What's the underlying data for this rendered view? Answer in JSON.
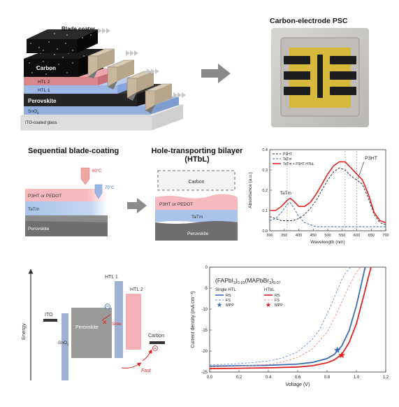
{
  "top": {
    "layers": {
      "blade_coater": "Blade coater",
      "carbon": "Carbon",
      "htl2": "HTL 2",
      "htl1": "HTL 1",
      "perovskite": "Perovskite",
      "sno2": "SnO",
      "sno2_sub": "2",
      "ito": "ITO-coated glass"
    },
    "photo_title": "Carbon-electrode PSC"
  },
  "middle": {
    "sequential_title": "Sequential blade-coating",
    "seq_labels": {
      "p3ht": "P3HT or PEDOT",
      "tatm": "TaTm",
      "perovskite": "Perovskite",
      "temp1": "60°C",
      "temp2": "70°C"
    },
    "htbl_title_line1": "Hole-transporting bilayer",
    "htbl_title_line2": "(HTbL)",
    "htbl_labels": {
      "carbon": "Carbon",
      "p3ht": "P3HT or PEDOT",
      "tatm": "TaTm",
      "perovskite": "Perovskite"
    },
    "colors": {
      "p3ht": "#f6b9bd",
      "tatm": "#a9c3ea",
      "perovskite": "#6f6f6f"
    }
  },
  "absorbance": {
    "legend": [
      "P3HT",
      "TaTm",
      "TaTm + P3HT HTbL"
    ],
    "annotations": {
      "tatm": "TaTm",
      "p3ht": "P3HT"
    }
  },
  "energy": {
    "axis_label": "Energy",
    "ito": "ITO",
    "sno2": "SnO",
    "sno2_sub": "2",
    "perovskite": "Perovskite",
    "htl1": "HTL 1",
    "htl2": "HTL 2",
    "carbon": "Carbon",
    "slow": "Slow",
    "fast": "Fast"
  },
  "jv": {
    "title_parts": [
      "(FAPbI",
      "3",
      ")",
      "0.93",
      "(MAPbBr",
      "3",
      ")",
      "0.07"
    ],
    "legend": {
      "single_htl": "Single HTL",
      "htbl": "HTbL",
      "rs": "RS",
      "fs": "FS",
      "mpp": "MPP"
    },
    "colors": {
      "single": "#3a6cb0",
      "htbl": "#e02424"
    }
  },
  "chart_data": [
    {
      "type": "line",
      "xlabel": "Wavelength (nm)",
      "ylabel": "Absorbance (a.u.)",
      "xlim": [
        300,
        700
      ],
      "ylim": [
        0.0,
        0.4
      ],
      "xticks": [
        300,
        350,
        400,
        450,
        500,
        550,
        600,
        650,
        700
      ],
      "yticks": [
        0.0,
        0.1,
        0.2,
        0.3,
        0.4
      ],
      "legend_position": "top-left",
      "series": [
        {
          "name": "P3HT",
          "style": "dashed",
          "color": "#333333",
          "x": [
            300,
            320,
            340,
            360,
            380,
            400,
            420,
            440,
            460,
            480,
            500,
            520,
            540,
            560,
            580,
            600,
            620,
            640,
            660,
            680,
            700
          ],
          "y": [
            0.07,
            0.06,
            0.05,
            0.05,
            0.05,
            0.06,
            0.08,
            0.11,
            0.15,
            0.2,
            0.25,
            0.29,
            0.31,
            0.3,
            0.27,
            0.25,
            0.23,
            0.16,
            0.08,
            0.04,
            0.03
          ]
        },
        {
          "name": "TaTm",
          "style": "dashed",
          "color": "#3a6cb0",
          "x": [
            300,
            320,
            340,
            360,
            370,
            380,
            400,
            420,
            440,
            460,
            500,
            550,
            600,
            650,
            700
          ],
          "y": [
            0.05,
            0.06,
            0.09,
            0.13,
            0.14,
            0.12,
            0.07,
            0.04,
            0.03,
            0.02,
            0.02,
            0.02,
            0.02,
            0.02,
            0.02
          ]
        },
        {
          "name": "TaTm + P3HT HTbL",
          "style": "solid",
          "color": "#e02424",
          "x": [
            300,
            320,
            340,
            360,
            370,
            380,
            400,
            420,
            440,
            460,
            480,
            500,
            520,
            540,
            560,
            580,
            600,
            620,
            640,
            660,
            680,
            700
          ],
          "y": [
            0.1,
            0.1,
            0.12,
            0.15,
            0.16,
            0.15,
            0.12,
            0.12,
            0.14,
            0.18,
            0.23,
            0.28,
            0.32,
            0.34,
            0.34,
            0.31,
            0.28,
            0.25,
            0.18,
            0.09,
            0.05,
            0.04
          ]
        }
      ],
      "reference_lines_x": [
        360,
        560,
        600
      ]
    },
    {
      "type": "line",
      "xlabel": "Voltage (V)",
      "ylabel": "Current density (mA cm⁻²)",
      "xlim": [
        0.0,
        1.2
      ],
      "ylim": [
        -25,
        0
      ],
      "xticks": [
        0.0,
        0.2,
        0.4,
        0.6,
        0.8,
        1.0,
        1.2
      ],
      "yticks": [
        -25,
        -20,
        -15,
        -10,
        -5,
        0
      ],
      "series": [
        {
          "name": "Single HTL RS",
          "style": "solid",
          "color": "#3a6cb0",
          "x": [
            0.0,
            0.2,
            0.4,
            0.6,
            0.7,
            0.8,
            0.85,
            0.9,
            0.95,
            1.0,
            1.03,
            1.06
          ],
          "y": [
            -23.6,
            -23.5,
            -23.4,
            -23.1,
            -22.7,
            -21.8,
            -20.8,
            -18.8,
            -15.2,
            -9.2,
            -4.6,
            0
          ]
        },
        {
          "name": "Single HTL FS",
          "style": "dashed",
          "color": "#6f96cf",
          "x": [
            0.0,
            0.2,
            0.4,
            0.5,
            0.6,
            0.7,
            0.75,
            0.8,
            0.85,
            0.9,
            0.93,
            0.96
          ],
          "y": [
            -23.3,
            -23.0,
            -22.4,
            -21.6,
            -20.2,
            -17.2,
            -14.8,
            -11.2,
            -7.2,
            -3.0,
            -1.2,
            0
          ]
        },
        {
          "name": "HTbL RS",
          "style": "solid",
          "color": "#e02424",
          "x": [
            0.0,
            0.2,
            0.4,
            0.6,
            0.7,
            0.8,
            0.85,
            0.9,
            0.95,
            1.0,
            1.05,
            1.08,
            1.1
          ],
          "y": [
            -24.2,
            -24.1,
            -24.0,
            -23.8,
            -23.5,
            -22.8,
            -22.1,
            -20.8,
            -18.0,
            -13.5,
            -6.8,
            -2.6,
            0
          ]
        },
        {
          "name": "HTbL FS",
          "style": "dashed",
          "color": "#f08a8a",
          "x": [
            0.0,
            0.2,
            0.4,
            0.5,
            0.6,
            0.7,
            0.8,
            0.85,
            0.9,
            0.95,
            1.0,
            1.03
          ],
          "y": [
            -23.8,
            -23.6,
            -23.2,
            -22.6,
            -21.5,
            -19.5,
            -15.5,
            -12.2,
            -8.3,
            -4.5,
            -1.2,
            0
          ]
        }
      ],
      "points": [
        {
          "name": "Single HTL MPP",
          "x": 0.87,
          "y": -19.8,
          "marker": "star",
          "color": "#3a6cb0"
        },
        {
          "name": "HTbL MPP",
          "x": 0.9,
          "y": -21.0,
          "marker": "star",
          "color": "#e02424"
        }
      ]
    }
  ]
}
